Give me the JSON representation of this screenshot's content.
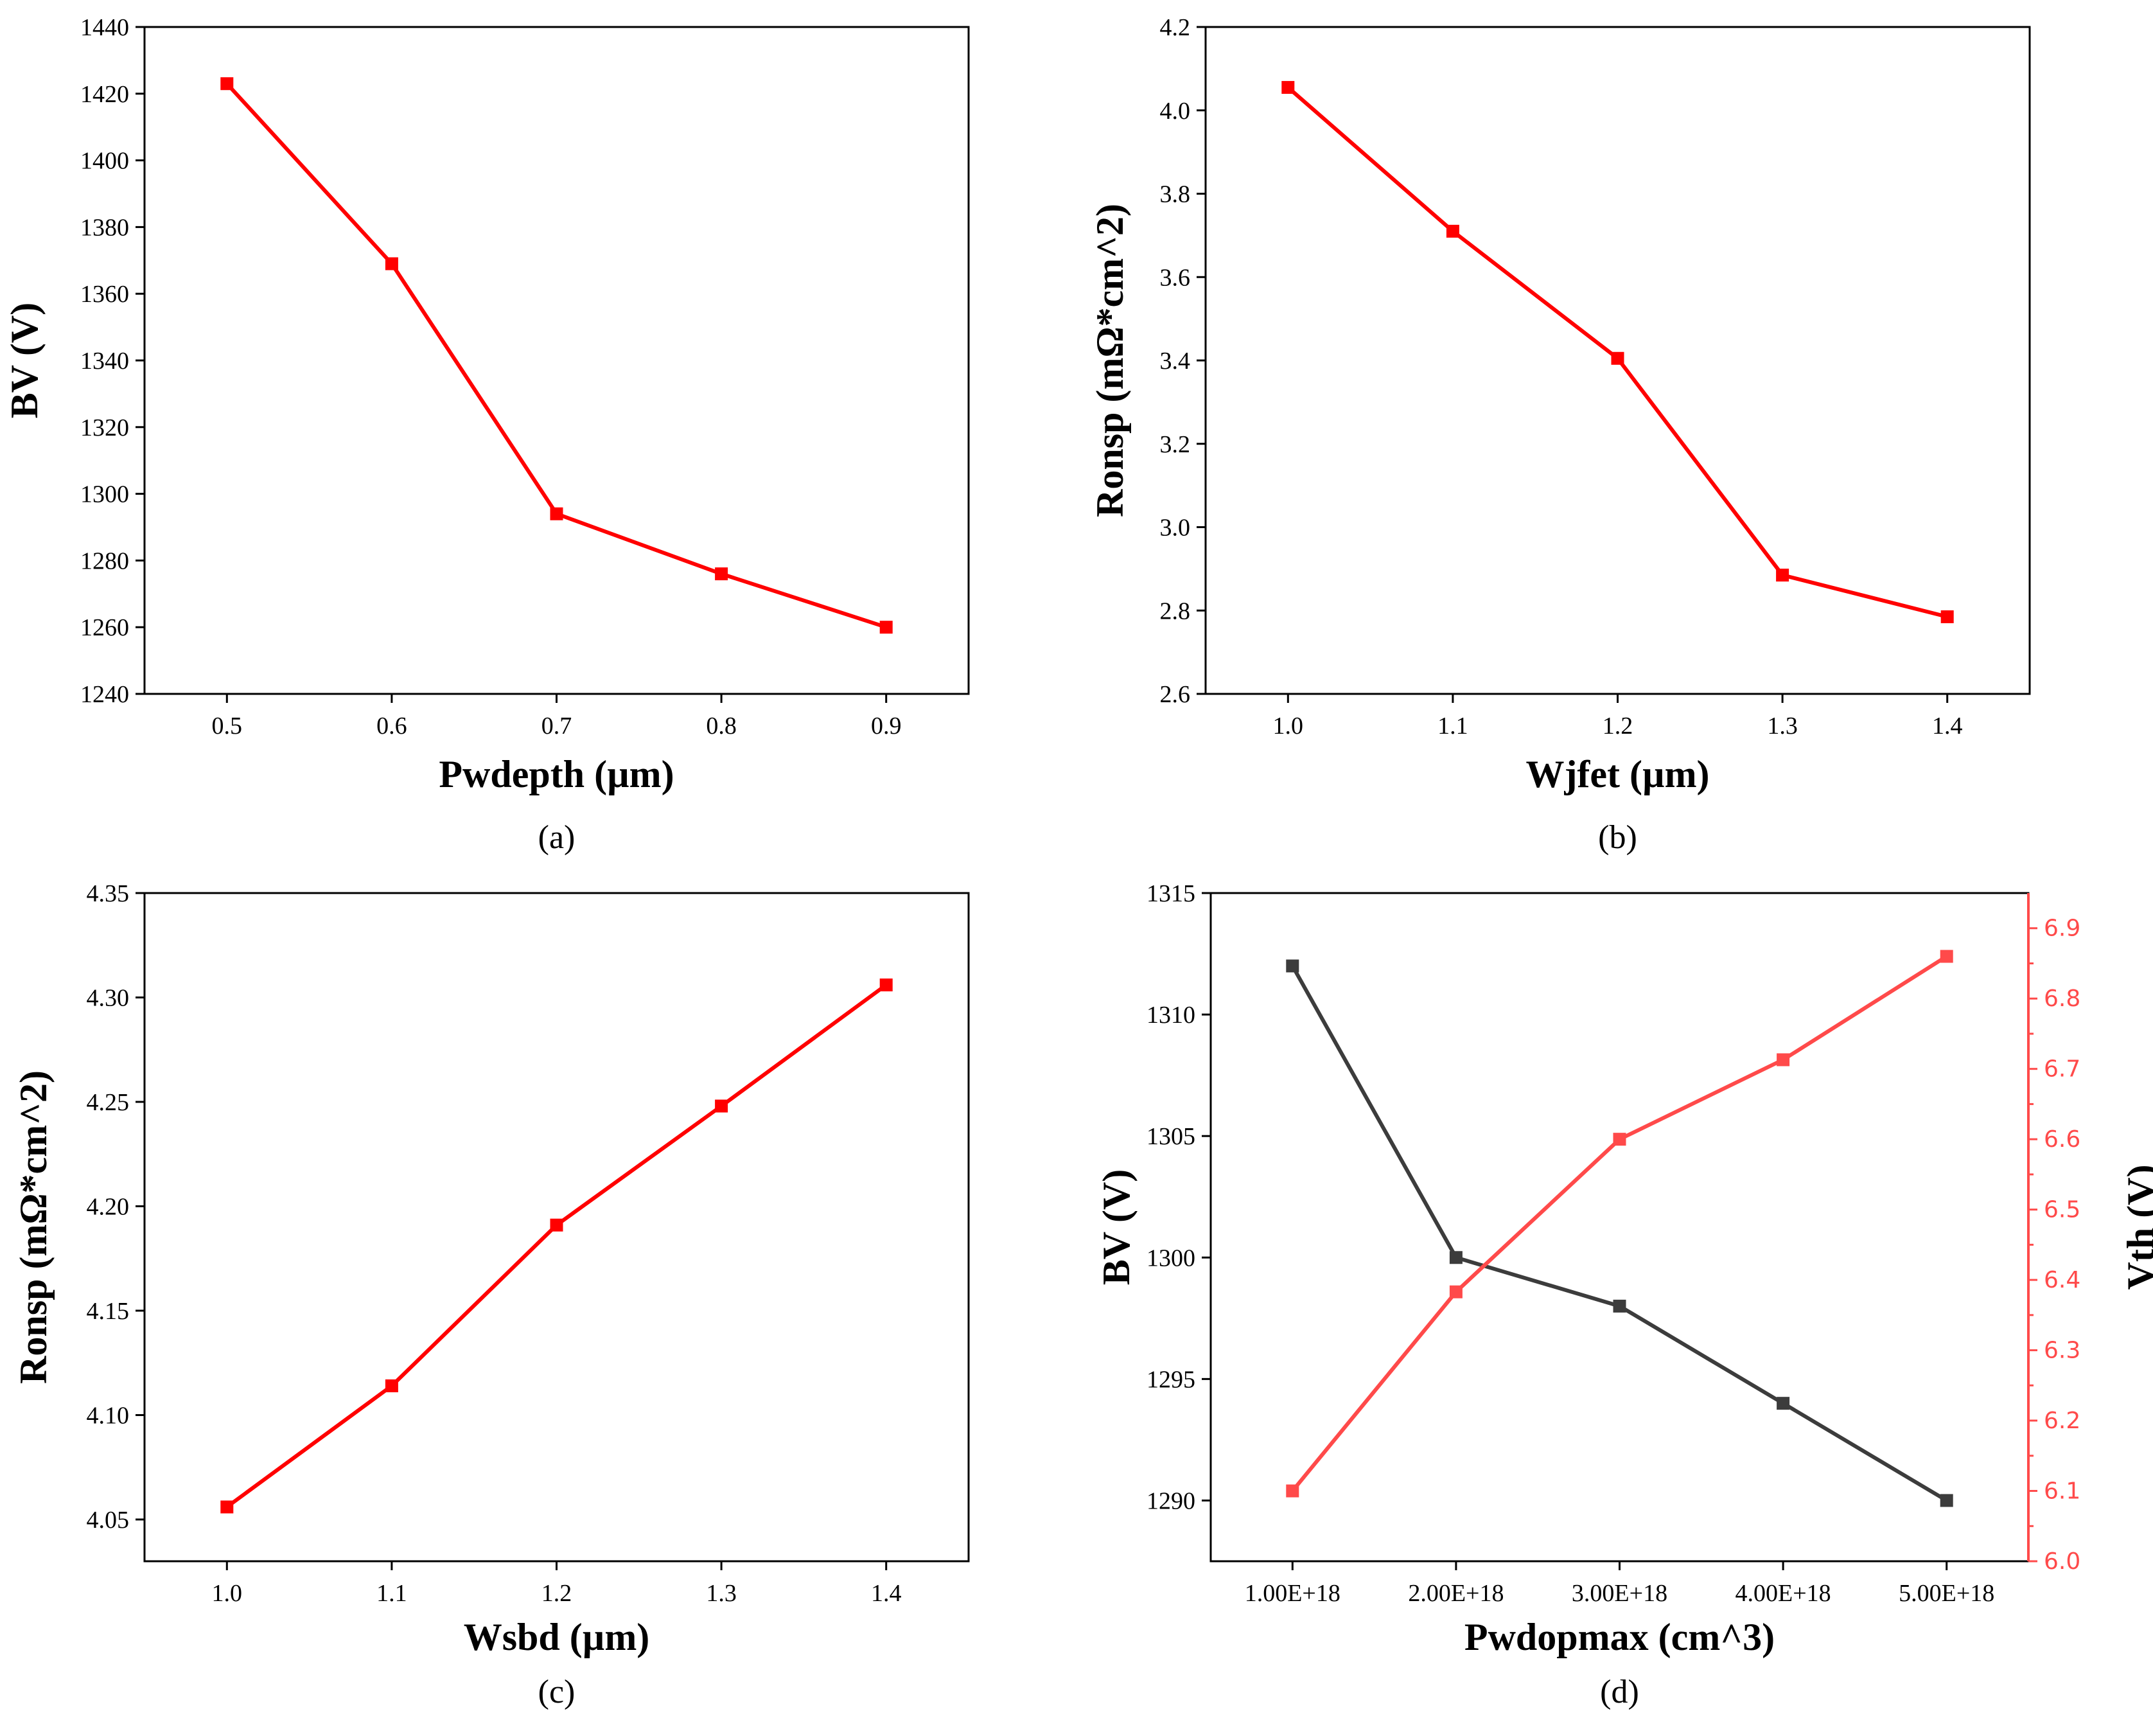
{
  "chart_data": [
    {
      "id": "a",
      "type": "line",
      "caption": "(a)",
      "xlabel": "Pwdepth (µm)",
      "ylabel": "BV (V)",
      "x": [
        0.5,
        0.6,
        0.7,
        0.8,
        0.9
      ],
      "xlim": [
        0.45,
        0.95
      ],
      "xticks": [
        "0.5",
        "0.6",
        "0.7",
        "0.8",
        "0.9"
      ],
      "xtick_values": [
        0.5,
        0.6,
        0.7,
        0.8,
        0.9
      ],
      "ylim": [
        1240,
        1440
      ],
      "yticks": [
        "1240",
        "1260",
        "1280",
        "1300",
        "1320",
        "1340",
        "1360",
        "1380",
        "1400",
        "1420",
        "1440"
      ],
      "ytick_values": [
        1240,
        1260,
        1280,
        1300,
        1320,
        1340,
        1360,
        1380,
        1400,
        1420,
        1440
      ],
      "series": [
        {
          "name": "BV",
          "color": "#ff0000",
          "axis": "left",
          "values": [
            1423,
            1369,
            1294,
            1276,
            1260
          ]
        }
      ]
    },
    {
      "id": "b",
      "type": "line",
      "caption": "(b)",
      "xlabel": "Wjfet (µm)",
      "ylabel": "Ronsp (mΩ*cm^2)",
      "x": [
        1.0,
        1.1,
        1.2,
        1.3,
        1.4
      ],
      "xlim": [
        0.95,
        1.45
      ],
      "xticks": [
        "1.0",
        "1.1",
        "1.2",
        "1.3",
        "1.4"
      ],
      "xtick_values": [
        1.0,
        1.1,
        1.2,
        1.3,
        1.4
      ],
      "ylim": [
        2.6,
        4.2
      ],
      "yticks": [
        "2.6",
        "2.8",
        "3.0",
        "3.2",
        "3.4",
        "3.6",
        "3.8",
        "4.0",
        "4.2"
      ],
      "ytick_values": [
        2.6,
        2.8,
        3.0,
        3.2,
        3.4,
        3.6,
        3.8,
        4.0,
        4.2
      ],
      "series": [
        {
          "name": "Ronsp",
          "color": "#ff0000",
          "axis": "left",
          "values": [
            4.055,
            3.71,
            3.405,
            2.885,
            2.785
          ]
        }
      ]
    },
    {
      "id": "c",
      "type": "line",
      "caption": "(c)",
      "xlabel": "Wsbd (µm)",
      "ylabel": "Ronsp (mΩ*cm^2)",
      "x": [
        1.0,
        1.1,
        1.2,
        1.3,
        1.4
      ],
      "xlim": [
        0.95,
        1.45
      ],
      "xticks": [
        "1.0",
        "1.1",
        "1.2",
        "1.3",
        "1.4"
      ],
      "xtick_values": [
        1.0,
        1.1,
        1.2,
        1.3,
        1.4
      ],
      "ylim": [
        4.03,
        4.35
      ],
      "yticks": [
        "4.05",
        "4.10",
        "4.15",
        "4.20",
        "4.25",
        "4.30",
        "4.35"
      ],
      "ytick_values": [
        4.05,
        4.1,
        4.15,
        4.2,
        4.25,
        4.3,
        4.35
      ],
      "series": [
        {
          "name": "Ronsp",
          "color": "#ff0000",
          "axis": "left",
          "values": [
            4.056,
            4.114,
            4.191,
            4.248,
            4.306
          ]
        }
      ]
    },
    {
      "id": "d",
      "type": "line",
      "caption": "(d)",
      "xlabel": "Pwdopmax (cm^3)",
      "ylabel": "BV (V)",
      "ylabel_right": "Vth (V)",
      "x": [
        1,
        2,
        3,
        4,
        5
      ],
      "xlim": [
        0.5,
        5.5
      ],
      "xticks": [
        "1.00E+18",
        "2.00E+18",
        "3.00E+18",
        "4.00E+18",
        "5.00E+18"
      ],
      "xtick_values": [
        1,
        2,
        3,
        4,
        5
      ],
      "ylim": [
        1287.5,
        1315
      ],
      "yticks": [
        "1290",
        "1295",
        "1300",
        "1305",
        "1310",
        "1315"
      ],
      "ytick_values": [
        1290,
        1295,
        1300,
        1305,
        1310,
        1315
      ],
      "ylim_right": [
        6.0,
        6.95
      ],
      "yticks_right": [
        "6.0",
        "6.1",
        "6.2",
        "6.3",
        "6.4",
        "6.5",
        "6.6",
        "6.7",
        "6.8",
        "6.9"
      ],
      "ytick_values_right": [
        6.0,
        6.1,
        6.2,
        6.3,
        6.4,
        6.5,
        6.6,
        6.7,
        6.8,
        6.9
      ],
      "series": [
        {
          "name": "BV",
          "color": "#3c3c3c",
          "axis": "left",
          "values": [
            1312,
            1300,
            1298,
            1294,
            1290
          ]
        },
        {
          "name": "Vth",
          "color": "#ff4a4a",
          "axis": "right",
          "values": [
            6.1,
            6.383,
            6.6,
            6.713,
            6.86
          ]
        }
      ]
    }
  ]
}
